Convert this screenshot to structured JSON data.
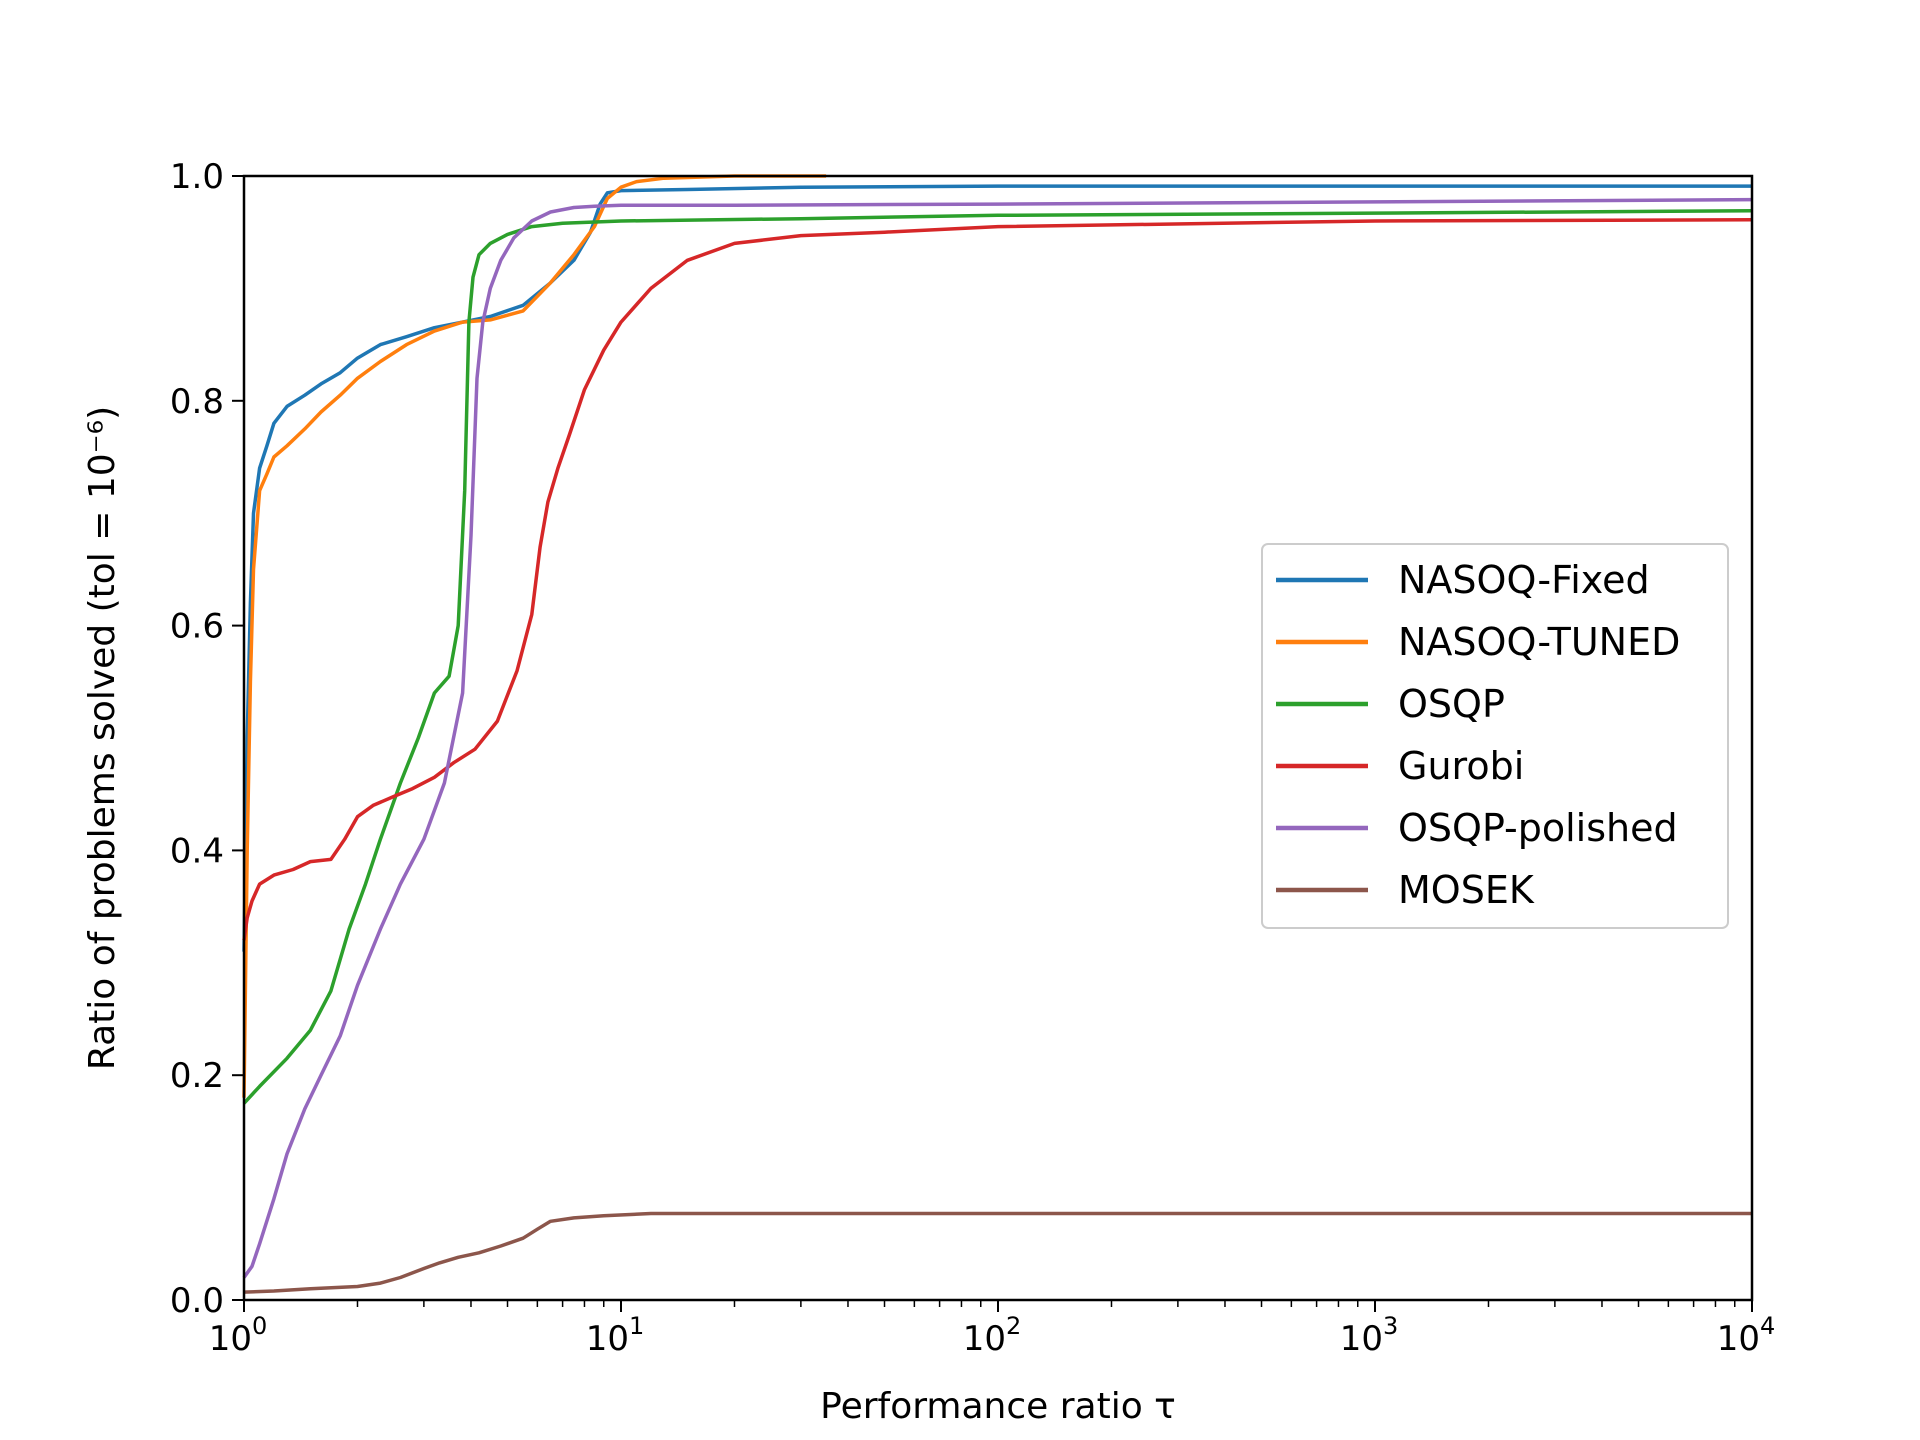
{
  "chart_data": {
    "type": "line",
    "title": "",
    "xlabel": "Performance ratio τ",
    "ylabel": "Ratio of problems solved (tol = 10⁻⁶)",
    "x_scale": "log",
    "xlim": [
      1,
      10000
    ],
    "ylim": [
      0,
      1
    ],
    "x_ticks": [
      {
        "value": 1,
        "base": "10",
        "exp": "0"
      },
      {
        "value": 10,
        "base": "10",
        "exp": "1"
      },
      {
        "value": 100,
        "base": "10",
        "exp": "2"
      },
      {
        "value": 1000,
        "base": "10",
        "exp": "3"
      },
      {
        "value": 10000,
        "base": "10",
        "exp": "4"
      }
    ],
    "y_ticks": [
      {
        "value": 0.0,
        "label": "0.0"
      },
      {
        "value": 0.2,
        "label": "0.2"
      },
      {
        "value": 0.4,
        "label": "0.4"
      },
      {
        "value": 0.6,
        "label": "0.6"
      },
      {
        "value": 0.8,
        "label": "0.8"
      },
      {
        "value": 1.0,
        "label": "1.0"
      }
    ],
    "grid": false,
    "legend_position": "center-right",
    "series": [
      {
        "name": "NASOQ-Fixed",
        "color": "#1f77b4",
        "x": [
          1.0,
          1.02,
          1.04,
          1.06,
          1.1,
          1.15,
          1.2,
          1.3,
          1.45,
          1.6,
          1.8,
          2.0,
          2.3,
          2.7,
          3.2,
          3.8,
          4.5,
          5.5,
          6.5,
          7.5,
          8.3,
          8.8,
          9.2,
          10.0,
          15.0,
          30.0,
          100.0,
          1000.0,
          10000.0
        ],
        "y": [
          0.31,
          0.5,
          0.62,
          0.7,
          0.74,
          0.76,
          0.78,
          0.795,
          0.805,
          0.815,
          0.825,
          0.838,
          0.85,
          0.857,
          0.865,
          0.87,
          0.875,
          0.885,
          0.905,
          0.925,
          0.95,
          0.975,
          0.985,
          0.987,
          0.988,
          0.99,
          0.991,
          0.991,
          0.991
        ]
      },
      {
        "name": "NASOQ-TUNED",
        "color": "#ff7f0e",
        "x": [
          1.0,
          1.02,
          1.04,
          1.06,
          1.1,
          1.15,
          1.2,
          1.3,
          1.45,
          1.6,
          1.8,
          2.0,
          2.3,
          2.7,
          3.2,
          3.8,
          4.5,
          5.5,
          6.5,
          7.5,
          8.5,
          9.2,
          10.0,
          11.0,
          13.0,
          20.0,
          35.0
        ],
        "y": [
          0.18,
          0.4,
          0.55,
          0.65,
          0.72,
          0.735,
          0.75,
          0.76,
          0.775,
          0.79,
          0.805,
          0.82,
          0.835,
          0.85,
          0.862,
          0.87,
          0.872,
          0.88,
          0.905,
          0.93,
          0.955,
          0.98,
          0.99,
          0.995,
          0.998,
          1.0,
          1.0
        ]
      },
      {
        "name": "OSQP",
        "color": "#2ca02c",
        "x": [
          1.0,
          1.1,
          1.3,
          1.5,
          1.7,
          1.9,
          2.1,
          2.3,
          2.6,
          2.9,
          3.2,
          3.5,
          3.7,
          3.85,
          3.95,
          4.05,
          4.2,
          4.5,
          5.0,
          5.8,
          7.0,
          10.0,
          30.0,
          100.0,
          1000.0,
          10000.0
        ],
        "y": [
          0.175,
          0.19,
          0.215,
          0.24,
          0.275,
          0.33,
          0.37,
          0.41,
          0.46,
          0.5,
          0.54,
          0.555,
          0.6,
          0.72,
          0.87,
          0.91,
          0.93,
          0.94,
          0.948,
          0.955,
          0.958,
          0.96,
          0.962,
          0.965,
          0.967,
          0.969
        ]
      },
      {
        "name": "Gurobi",
        "color": "#d62728",
        "x": [
          1.0,
          1.02,
          1.05,
          1.1,
          1.2,
          1.35,
          1.5,
          1.7,
          1.85,
          2.0,
          2.2,
          2.5,
          2.8,
          3.2,
          3.6,
          4.1,
          4.7,
          5.3,
          5.8,
          6.1,
          6.4,
          6.8,
          7.3,
          8.0,
          9.0,
          10.0,
          12.0,
          15.0,
          20.0,
          30.0,
          50.0,
          100.0,
          1000.0,
          10000.0
        ],
        "y": [
          0.32,
          0.34,
          0.355,
          0.37,
          0.378,
          0.383,
          0.39,
          0.392,
          0.41,
          0.43,
          0.44,
          0.448,
          0.455,
          0.465,
          0.478,
          0.49,
          0.515,
          0.56,
          0.61,
          0.67,
          0.71,
          0.74,
          0.77,
          0.81,
          0.845,
          0.87,
          0.9,
          0.925,
          0.94,
          0.947,
          0.95,
          0.955,
          0.96,
          0.961
        ]
      },
      {
        "name": "OSQP-polished",
        "color": "#9467bd",
        "x": [
          1.0,
          1.05,
          1.1,
          1.2,
          1.3,
          1.45,
          1.6,
          1.8,
          2.0,
          2.3,
          2.6,
          3.0,
          3.4,
          3.8,
          4.0,
          4.15,
          4.3,
          4.5,
          4.8,
          5.2,
          5.8,
          6.5,
          7.5,
          8.5,
          10.0,
          20.0,
          100.0,
          1000.0,
          10000.0
        ],
        "y": [
          0.02,
          0.03,
          0.05,
          0.09,
          0.13,
          0.17,
          0.2,
          0.235,
          0.28,
          0.33,
          0.37,
          0.41,
          0.46,
          0.54,
          0.68,
          0.82,
          0.87,
          0.9,
          0.925,
          0.945,
          0.96,
          0.968,
          0.972,
          0.973,
          0.974,
          0.974,
          0.975,
          0.977,
          0.979
        ]
      },
      {
        "name": "MOSEK",
        "color": "#8c564b",
        "x": [
          1.0,
          1.2,
          1.5,
          2.0,
          2.3,
          2.6,
          3.0,
          3.3,
          3.7,
          4.2,
          4.8,
          5.5,
          6.0,
          6.5,
          7.5,
          9.0,
          12.0,
          100.0,
          10000.0
        ],
        "y": [
          0.007,
          0.008,
          0.01,
          0.012,
          0.015,
          0.02,
          0.028,
          0.033,
          0.038,
          0.042,
          0.048,
          0.055,
          0.063,
          0.07,
          0.073,
          0.075,
          0.077,
          0.077,
          0.077
        ]
      }
    ]
  }
}
